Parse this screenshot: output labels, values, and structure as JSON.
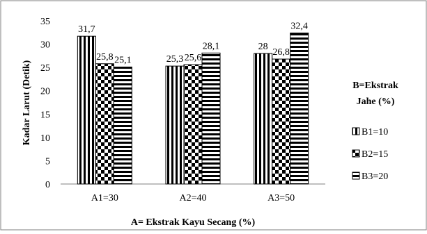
{
  "chart_data": {
    "type": "bar",
    "categories": [
      "A1=30",
      "A2=40",
      "A3=50"
    ],
    "series": [
      {
        "name": "B1=10",
        "values": [
          31.7,
          25.3,
          28
        ],
        "labels": [
          "31,7",
          "25,3",
          "28"
        ],
        "pattern": "vertical-lines"
      },
      {
        "name": "B2=15",
        "values": [
          25.8,
          25.6,
          26.8
        ],
        "labels": [
          "25,8",
          "25,6",
          "26,8"
        ],
        "pattern": "checkerboard"
      },
      {
        "name": "B3=20",
        "values": [
          25.1,
          28.1,
          32.4
        ],
        "labels": [
          "25,1",
          "28,1",
          "32,4"
        ],
        "pattern": "horizontal-lines"
      }
    ],
    "xlabel": "A= Ekstrak Kayu Secang (%)",
    "ylabel": "Kadar  Larut (Detik)",
    "ylim": [
      0,
      35
    ],
    "yticks": [
      0,
      5,
      10,
      15,
      20,
      25,
      30,
      35
    ],
    "legend_title_lines": [
      "B=Ekstrak",
      "Jahe (%)"
    ],
    "legend_position": "right",
    "grid": false,
    "colors": {
      "bar_fill": "#000000",
      "bar_background": "#ffffff",
      "frame": "#7f7f7f"
    }
  }
}
